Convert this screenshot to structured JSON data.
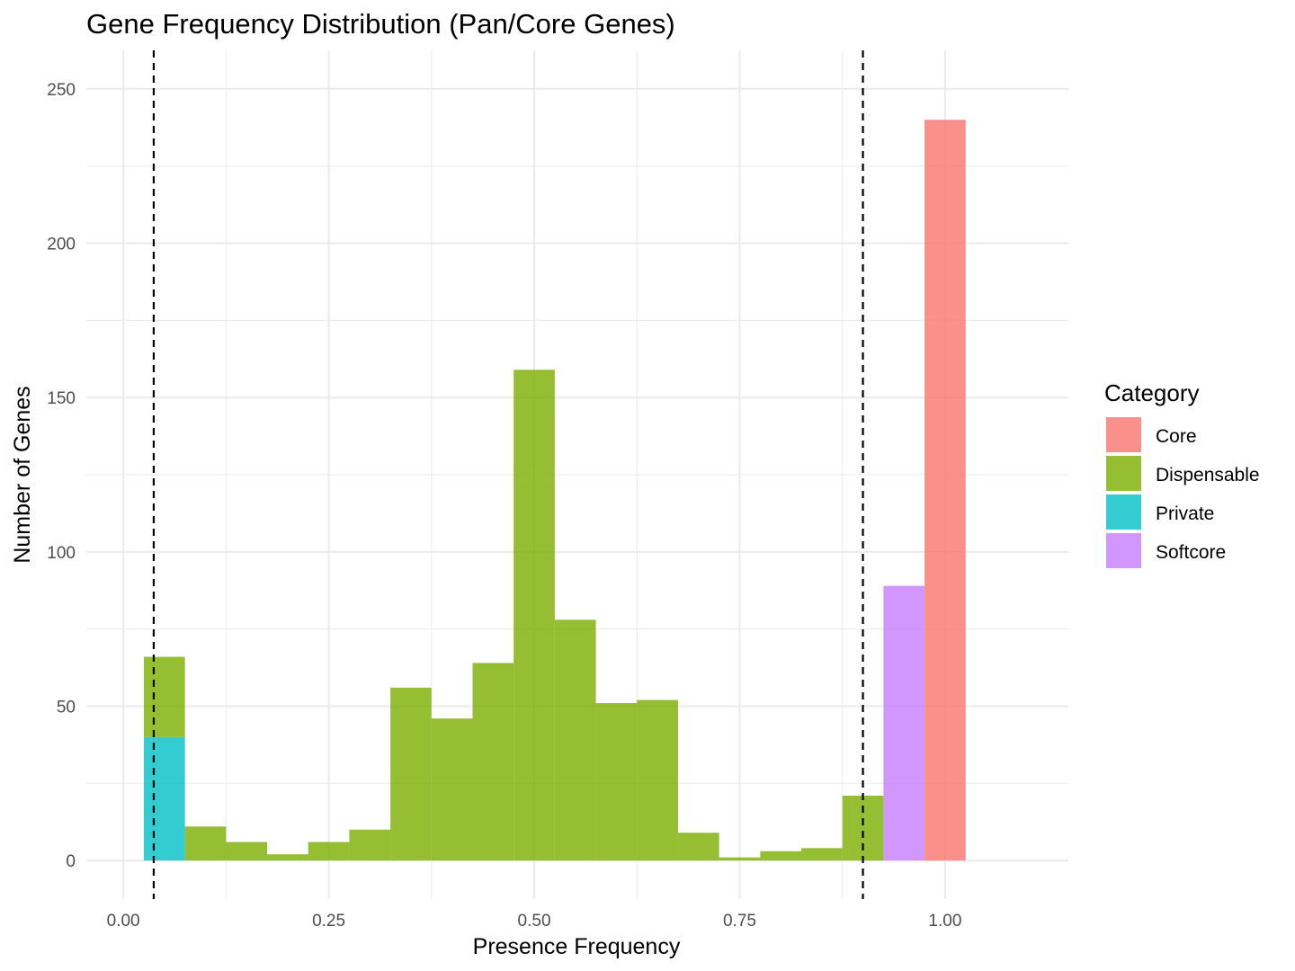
{
  "chart_data": {
    "type": "bar",
    "title": "Gene Frequency Distribution (Pan/Core Genes)",
    "xlabel": "Presence Frequency",
    "ylabel": "Number of Genes",
    "xlim": [
      -0.045,
      1.15
    ],
    "ylim": [
      -12.5,
      262.5
    ],
    "x_ticks": [
      0.0,
      0.25,
      0.5,
      0.75,
      1.0
    ],
    "x_tick_labels": [
      "0.00",
      "0.25",
      "0.50",
      "0.75",
      "1.00"
    ],
    "y_ticks": [
      0,
      50,
      100,
      150,
      200,
      250
    ],
    "y_tick_labels": [
      "0",
      "50",
      "100",
      "150",
      "200",
      "250"
    ],
    "grid": true,
    "bin_width": 0.05,
    "bin_centers": [
      0.05,
      0.1,
      0.15,
      0.2,
      0.25,
      0.3,
      0.35,
      0.4,
      0.45,
      0.5,
      0.55,
      0.6,
      0.65,
      0.7,
      0.75,
      0.8,
      0.85,
      0.9,
      0.95,
      1.0
    ],
    "series": [
      {
        "name": "Private",
        "color": "#00BFC4",
        "values": [
          40,
          0,
          0,
          0,
          0,
          0,
          0,
          0,
          0,
          0,
          0,
          0,
          0,
          0,
          0,
          0,
          0,
          0,
          0,
          0
        ]
      },
      {
        "name": "Dispensable",
        "color": "#7CAE00",
        "values": [
          26,
          11,
          6,
          2,
          6,
          10,
          56,
          46,
          64,
          159,
          78,
          51,
          52,
          9,
          1,
          3,
          4,
          21,
          0,
          0
        ]
      },
      {
        "name": "Softcore",
        "color": "#C77CFF",
        "values": [
          0,
          0,
          0,
          0,
          0,
          0,
          0,
          0,
          0,
          0,
          0,
          0,
          0,
          0,
          0,
          0,
          0,
          0,
          89,
          0
        ]
      },
      {
        "name": "Core",
        "color": "#F8766D",
        "values": [
          0,
          0,
          0,
          0,
          0,
          0,
          0,
          0,
          0,
          0,
          0,
          0,
          0,
          0,
          0,
          0,
          0,
          0,
          0,
          240
        ]
      }
    ],
    "stacking": "stacked",
    "bar_opacity": 0.8,
    "reference_lines": [
      {
        "x": 0.037,
        "style": "dashed",
        "color": "#000000"
      },
      {
        "x": 0.9,
        "style": "dashed",
        "color": "#000000"
      }
    ],
    "legend": {
      "title": "Category",
      "position": "right",
      "items": [
        {
          "label": "Core",
          "color": "#F8766D"
        },
        {
          "label": "Dispensable",
          "color": "#7CAE00"
        },
        {
          "label": "Private",
          "color": "#00BFC4"
        },
        {
          "label": "Softcore",
          "color": "#C77CFF"
        }
      ]
    }
  }
}
